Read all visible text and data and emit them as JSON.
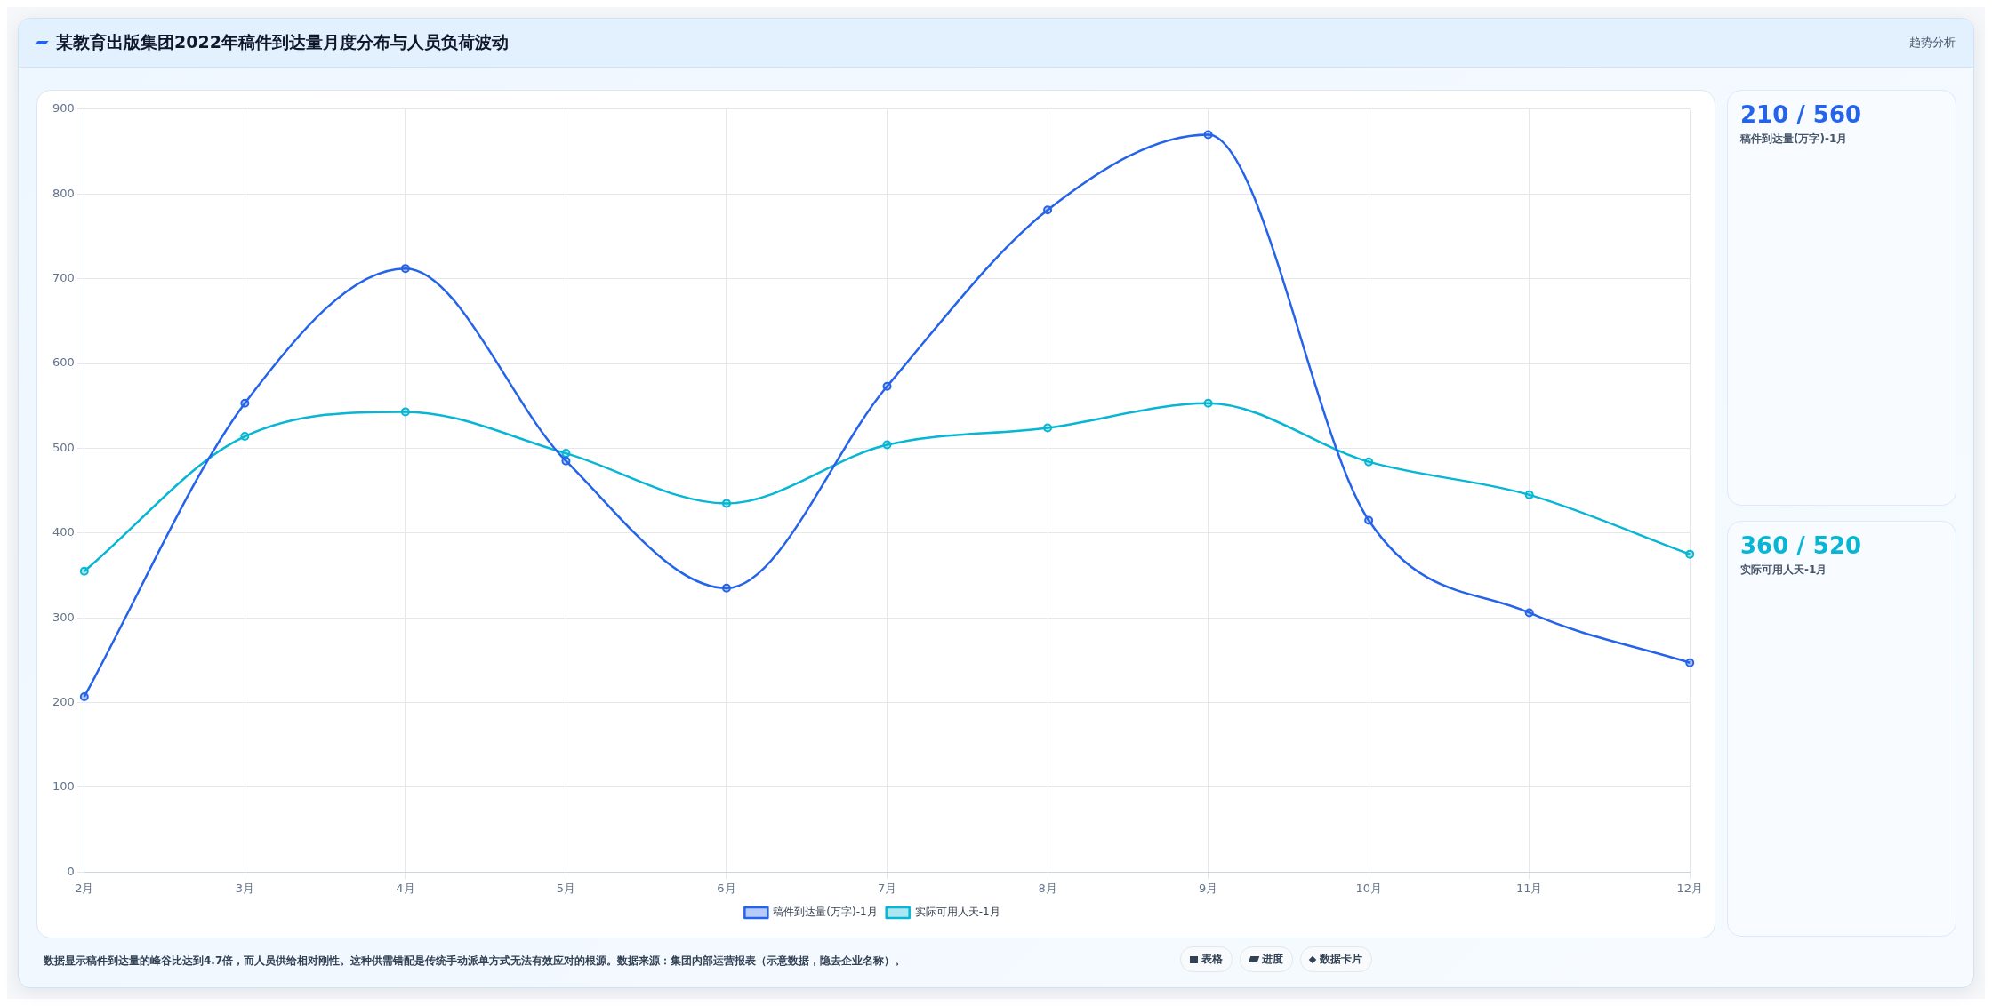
{
  "chart_data": {
    "type": "line",
    "title": "某教育出版集团2022年稿件到达量月度分布与人员负荷波动",
    "categories": [
      "2月",
      "3月",
      "4月",
      "5月",
      "6月",
      "7月",
      "8月",
      "9月",
      "10月",
      "11月",
      "12月"
    ],
    "series": [
      {
        "name": "稿件到达量(万字)-1月",
        "color": "#2563eb",
        "values": [
          207,
          553,
          712,
          485,
          335,
          573,
          781,
          870,
          415,
          306,
          247
        ]
      },
      {
        "name": "实际可用人天-1月",
        "color": "#06b6d4",
        "values": [
          355,
          514,
          543,
          494,
          435,
          504,
          524,
          553,
          484,
          445,
          375
        ]
      }
    ],
    "ylim": [
      0,
      900
    ],
    "yticks": [
      0,
      100,
      200,
      300,
      400,
      500,
      600,
      700,
      800,
      900
    ],
    "grid": true,
    "legend": "bottom",
    "marker": "circle",
    "line_style": "solid",
    "annotations": [
      "趋势分析",
      "210 / 560",
      "稿件到达量(万字)-1月",
      "360 / 520",
      "实际可用人天-1月",
      "数据显示稿件到达量的峰谷比达到4.7倍，而人员供给相对刚性。这种供需错配是传统手动派单方式无法有效应对的根源。数据来源：集团内部运营报表（示意数据，隐去企业名称）。",
      "表格",
      "进度",
      "数据卡片"
    ]
  }
}
